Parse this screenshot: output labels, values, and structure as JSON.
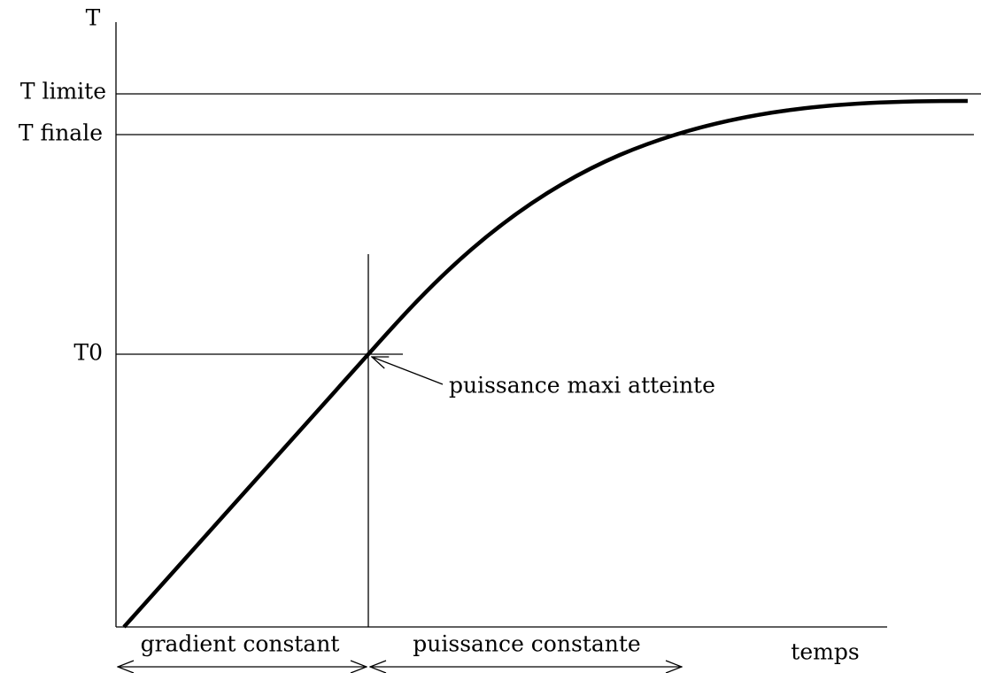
{
  "axes": {
    "y_label": "T",
    "x_label": "temps"
  },
  "levels": {
    "t_limite": "T limite",
    "t_finale": "T finale",
    "t0": "T0"
  },
  "annotation": "puissance maxi atteinte",
  "phases": {
    "first": "gradient constant",
    "second": "puissance constante"
  }
}
